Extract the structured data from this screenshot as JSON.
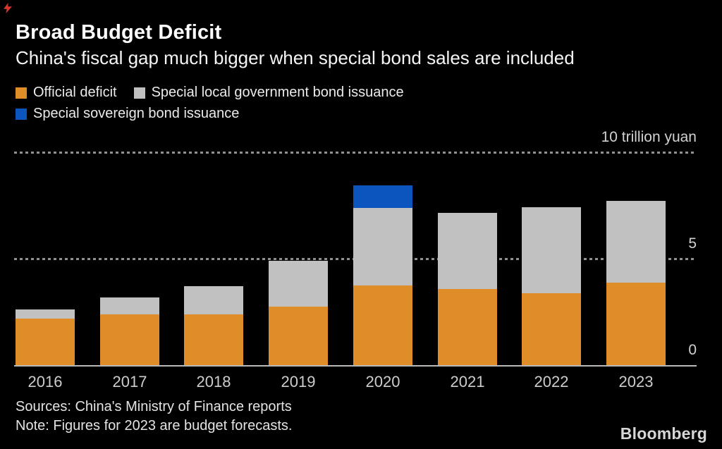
{
  "header": {
    "title": "Broad Budget Deficit",
    "subtitle": "China's fiscal gap much bigger when special bond sales are included"
  },
  "legend": {
    "items": [
      {
        "label": "Official deficit",
        "color": "#DE8D28"
      },
      {
        "label": "Special local government bond issuance",
        "color": "#C1C1C1"
      },
      {
        "label": "Special sovereign bond issuance",
        "color": "#0C55BE"
      }
    ]
  },
  "axis": {
    "ticks": [
      {
        "value": 10,
        "label": "10 trillion yuan"
      },
      {
        "value": 5,
        "label": "5"
      },
      {
        "value": 0,
        "label": "0"
      }
    ]
  },
  "chart_data": {
    "type": "bar",
    "stacked": true,
    "categories": [
      "2016",
      "2017",
      "2018",
      "2019",
      "2020",
      "2021",
      "2022",
      "2023"
    ],
    "series": [
      {
        "name": "Official deficit",
        "color": "#DE8D28",
        "values": [
          2.18,
          2.4,
          2.38,
          2.76,
          3.74,
          3.59,
          3.37,
          3.86
        ]
      },
      {
        "name": "Special local government bond issuance",
        "color": "#C1C1C1",
        "values": [
          0.45,
          0.79,
          1.34,
          2.13,
          3.64,
          3.56,
          4.05,
          3.84
        ]
      },
      {
        "name": "Special sovereign bond issuance",
        "color": "#0C55BE",
        "values": [
          0,
          0,
          0,
          0,
          1.06,
          0,
          0,
          0
        ]
      }
    ],
    "title": "Broad Budget Deficit",
    "xlabel": "",
    "ylabel": "trillion yuan",
    "ylim": [
      0,
      10
    ],
    "gridlines": [
      5,
      10
    ],
    "grid_style": "dotted",
    "legend_position": "top-left",
    "background": "#000000"
  },
  "footer": {
    "sources": "Sources: China's Ministry of Finance reports",
    "note": "Note: Figures for 2023 are budget forecasts.",
    "brand": "Bloomberg"
  }
}
